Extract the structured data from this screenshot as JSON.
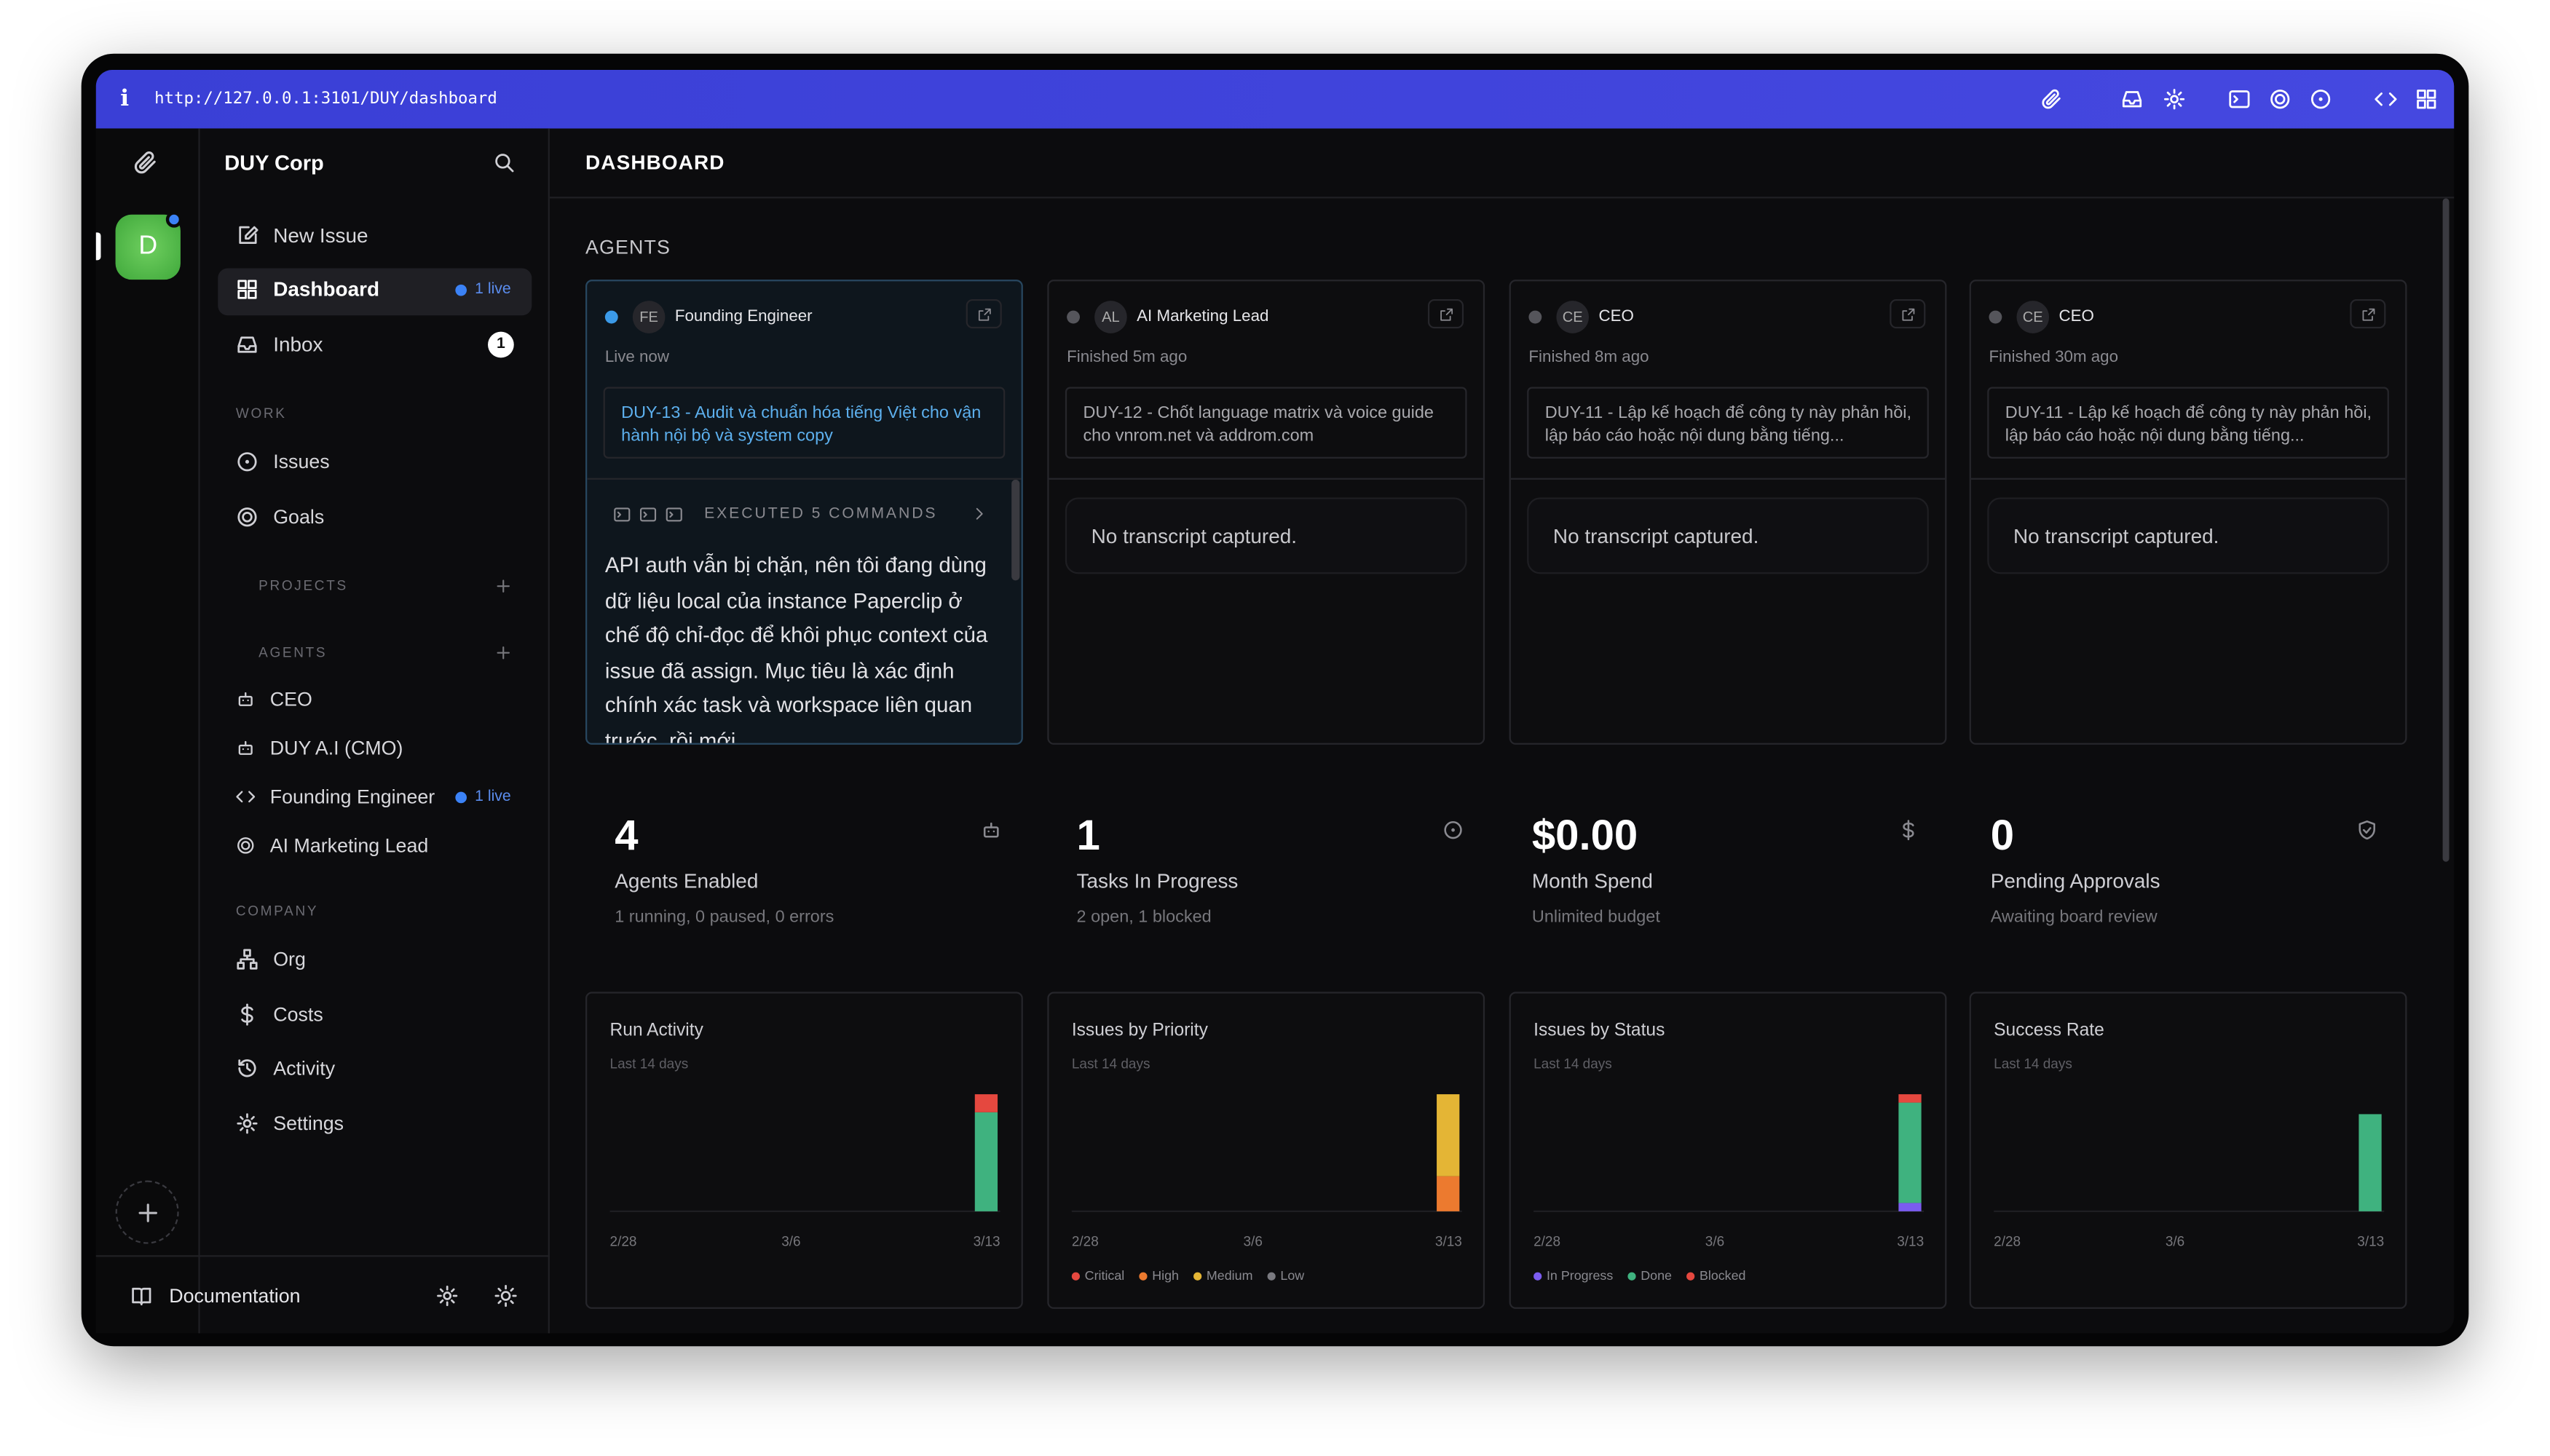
{
  "browser": {
    "url": "http://127.0.0.1:3101/DUY/dashboard"
  },
  "sidebar": {
    "company": "DUY Corp",
    "avatar_letter": "D",
    "top": [
      "New Issue",
      "Dashboard",
      "Inbox"
    ],
    "dashboard_badge": "1 live",
    "inbox_count": "1",
    "work_title": "WORK",
    "work": [
      "Issues",
      "Goals"
    ],
    "projects_title": "PROJECTS",
    "agents_title": "AGENTS",
    "agents": [
      {
        "name": "CEO"
      },
      {
        "name": "DUY A.I (CMO)"
      },
      {
        "name": "Founding Engineer",
        "badge": "1 live"
      },
      {
        "name": "AI Marketing Lead"
      }
    ],
    "company_title": "COMPANY",
    "company_links": [
      "Org",
      "Costs",
      "Activity",
      "Settings"
    ],
    "documentation": "Documentation"
  },
  "main": {
    "title": "DASHBOARD",
    "agents_title": "AGENTS",
    "agent_cards": [
      {
        "initials": "FE",
        "name": "Founding Engineer",
        "status": "Live now",
        "task": "DUY-13 - Audit và chuẩn hóa tiếng Việt cho vận hành nội bộ và system copy",
        "commands": "EXECUTED 5 COMMANDS",
        "transcript": "API auth vẫn bị chặn, nên tôi đang dùng dữ liệu local của instance Paperclip ở chế độ chỉ-đọc để khôi phục context của issue đã assign. Mục tiêu là xác định chính xác task và workspace liên quan trước, rồi mới"
      },
      {
        "initials": "AL",
        "name": "AI Marketing Lead",
        "status": "Finished 5m ago",
        "task": "DUY-12 - Chốt language matrix và voice guide cho vnrom.net và addrom.com",
        "transcript": "No transcript captured."
      },
      {
        "initials": "CE",
        "name": "CEO",
        "status": "Finished 8m ago",
        "task": "DUY-11 - Lập kế hoạch để công ty này phản hồi, lập báo cáo hoặc nội dung bằng tiếng...",
        "transcript": "No transcript captured."
      },
      {
        "initials": "CE",
        "name": "CEO",
        "status": "Finished 30m ago",
        "task": "DUY-11 - Lập kế hoạch để công ty này phản hồi, lập báo cáo hoặc nội dung bằng tiếng...",
        "transcript": "No transcript captured."
      }
    ],
    "stats": [
      {
        "value": "4",
        "label": "Agents Enabled",
        "detail": "1 running, 0 paused, 0 errors"
      },
      {
        "value": "1",
        "label": "Tasks In Progress",
        "detail": "2 open, 1 blocked"
      },
      {
        "value": "$0.00",
        "label": "Month Spend",
        "detail": "Unlimited budget"
      },
      {
        "value": "0",
        "label": "Pending Approvals",
        "detail": "Awaiting board review"
      }
    ]
  },
  "chart_data": [
    {
      "type": "bar",
      "title": "Run Activity",
      "subtitle": "Last 14 days",
      "categories": [
        "2/28",
        null,
        null,
        null,
        null,
        null,
        "3/6",
        null,
        null,
        null,
        null,
        null,
        null,
        "3/13"
      ],
      "series": [
        {
          "color": "#3fb27f",
          "values": [
            0,
            0,
            0,
            0,
            0,
            0,
            0,
            0,
            0,
            0,
            0,
            0,
            0,
            11
          ]
        },
        {
          "color": "#e5483f",
          "values": [
            0,
            0,
            0,
            0,
            0,
            0,
            0,
            0,
            0,
            0,
            0,
            0,
            0,
            2
          ]
        }
      ]
    },
    {
      "type": "bar",
      "title": "Issues by Priority",
      "subtitle": "Last 14 days",
      "categories": [
        "2/28",
        null,
        null,
        null,
        null,
        null,
        "3/6",
        null,
        null,
        null,
        null,
        null,
        null,
        "3/13"
      ],
      "series": [
        {
          "name": "Critical",
          "color": "#e5483f",
          "values": [
            0,
            0,
            0,
            0,
            0,
            0,
            0,
            0,
            0,
            0,
            0,
            0,
            0,
            0
          ]
        },
        {
          "name": "High",
          "color": "#ec7a2f",
          "values": [
            0,
            0,
            0,
            0,
            0,
            0,
            0,
            0,
            0,
            0,
            0,
            0,
            0,
            3
          ]
        },
        {
          "name": "Medium",
          "color": "#e4b535",
          "values": [
            0,
            0,
            0,
            0,
            0,
            0,
            0,
            0,
            0,
            0,
            0,
            0,
            0,
            7
          ]
        },
        {
          "name": "Low",
          "color": "#7a7a80",
          "values": [
            0,
            0,
            0,
            0,
            0,
            0,
            0,
            0,
            0,
            0,
            0,
            0,
            0,
            0
          ]
        }
      ]
    },
    {
      "type": "bar",
      "title": "Issues by Status",
      "subtitle": "Last 14 days",
      "categories": [
        "2/28",
        null,
        null,
        null,
        null,
        null,
        "3/6",
        null,
        null,
        null,
        null,
        null,
        null,
        "3/13"
      ],
      "series": [
        {
          "name": "In Progress",
          "color": "#7b5cf0",
          "values": [
            0,
            0,
            0,
            0,
            0,
            0,
            0,
            0,
            0,
            0,
            0,
            0,
            0,
            1
          ]
        },
        {
          "name": "Done",
          "color": "#3fb27f",
          "values": [
            0,
            0,
            0,
            0,
            0,
            0,
            0,
            0,
            0,
            0,
            0,
            0,
            0,
            12
          ]
        },
        {
          "name": "Blocked",
          "color": "#e5483f",
          "values": [
            0,
            0,
            0,
            0,
            0,
            0,
            0,
            0,
            0,
            0,
            0,
            0,
            0,
            1
          ]
        }
      ]
    },
    {
      "type": "bar",
      "title": "Success Rate",
      "subtitle": "Last 14 days",
      "ylim": [
        0,
        100
      ],
      "categories": [
        "2/28",
        null,
        null,
        null,
        null,
        null,
        "3/6",
        null,
        null,
        null,
        null,
        null,
        null,
        "3/13"
      ],
      "series": [
        {
          "color": "#3fb27f",
          "values": [
            0,
            0,
            0,
            0,
            0,
            0,
            0,
            0,
            0,
            0,
            0,
            0,
            0,
            83
          ]
        }
      ]
    }
  ]
}
